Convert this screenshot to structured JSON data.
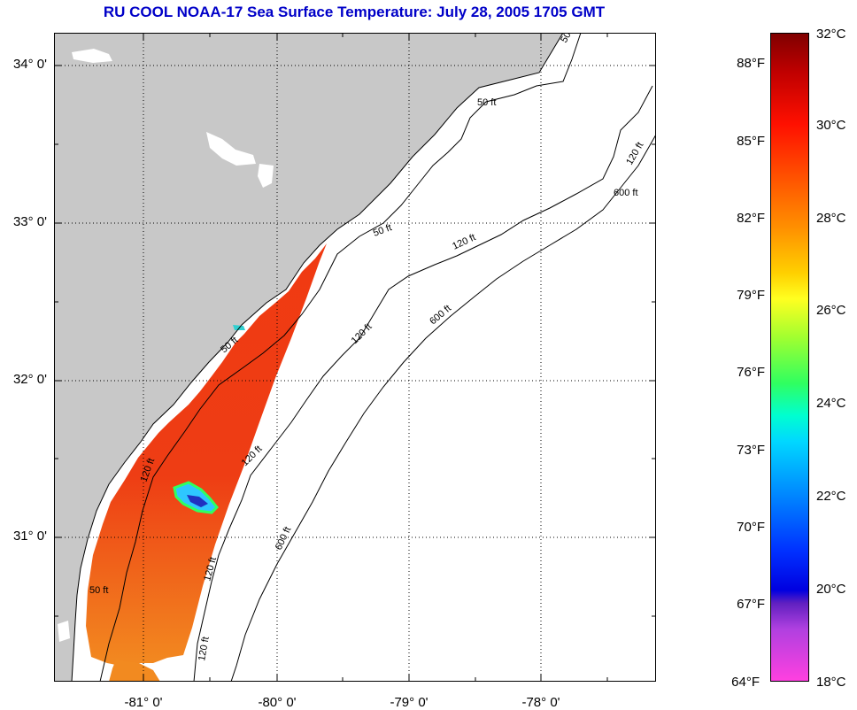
{
  "title": "RU COOL  NOAA-17  Sea Surface Temperature:  July 28, 2005 1705 GMT",
  "latitude_labels": [
    "34° 0'",
    "33° 0'",
    "32° 0'",
    "31° 0'"
  ],
  "longitude_labels": [
    "-81° 0'",
    "-80° 0'",
    "-79° 0'",
    "-78° 0'"
  ],
  "contour_labels": {
    "c50_a": "50",
    "c50_b": "50 ft",
    "c50_c": "50 ft",
    "c50_d": "50 ft",
    "c50_e": "50 ft",
    "c120_a": "120 ft",
    "c120_b": "120 ft",
    "c120_c": "120 ft",
    "c120_d": "120 ft",
    "c120_e": "120 ft",
    "c120_f": "120 ft",
    "c120_g": "120 ft",
    "c600_a": "600 ft",
    "c600_b": "600 ft",
    "c600_c": "600 ft"
  },
  "colorbar": {
    "fahrenheit_labels": [
      "88°F",
      "85°F",
      "82°F",
      "79°F",
      "76°F",
      "73°F",
      "70°F",
      "67°F",
      "64°F"
    ],
    "celsius_labels": [
      "32°C",
      "30°C",
      "28°C",
      "26°C",
      "24°C",
      "22°C",
      "20°C",
      "18°C"
    ],
    "range_celsius": [
      18,
      32
    ]
  },
  "colors": {
    "title": "#0000c8",
    "land": "#c8c8c8",
    "ocean": "#ffffff",
    "sst_warm": "#ee3a14",
    "sst_mid": "#f07a18",
    "sst_cool": "#00c8ff"
  }
}
